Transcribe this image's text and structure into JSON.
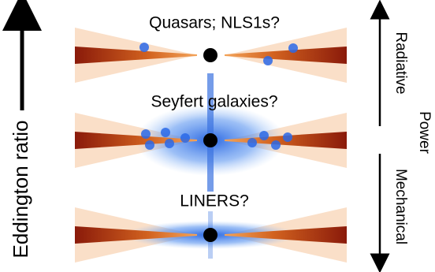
{
  "left_axis": {
    "label": "Eddington ratio"
  },
  "panels": [
    {
      "label": "Quasars; NLS1s?"
    },
    {
      "label": "Seyfert galaxies?"
    },
    {
      "label": "LINERS?"
    }
  ],
  "right_axis": {
    "top": "Radiative",
    "middle": "Power",
    "bottom": "Mechanical"
  }
}
